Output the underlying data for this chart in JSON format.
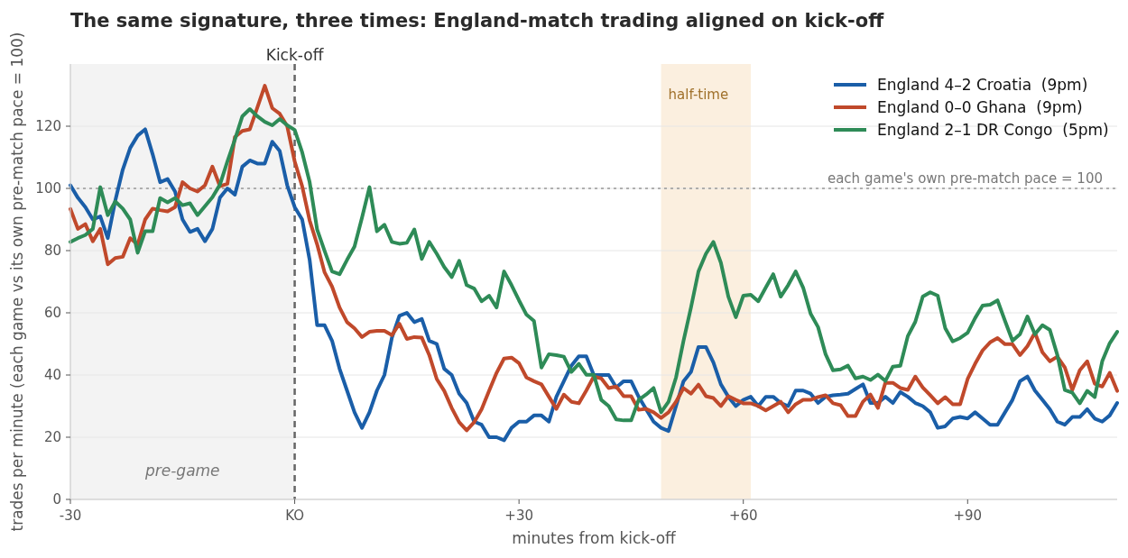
{
  "chart_data": {
    "type": "line",
    "title": "The same signature, three times: England-match trading aligned on kick-off",
    "xlabel": "minutes from kick-off",
    "ylabel": "trades per minute (each game vs its own pre-match pace = 100)",
    "x": [
      -30,
      -29,
      -28,
      -27,
      -26,
      -25,
      -24,
      -23,
      -22,
      -21,
      -20,
      -19,
      -18,
      -17,
      -16,
      -15,
      -14,
      -13,
      -12,
      -11,
      -10,
      -9,
      -8,
      -7,
      -6,
      -5,
      -4,
      -3,
      -2,
      -1,
      0,
      1,
      2,
      3,
      4,
      5,
      6,
      7,
      8,
      9,
      10,
      11,
      12,
      13,
      14,
      15,
      16,
      17,
      18,
      19,
      20,
      21,
      22,
      23,
      24,
      25,
      26,
      27,
      28,
      29,
      30,
      31,
      32,
      33,
      34,
      35,
      36,
      37,
      38,
      39,
      40,
      41,
      42,
      43,
      44,
      45,
      46,
      47,
      48,
      49,
      50,
      51,
      52,
      53,
      54,
      55,
      56,
      57,
      58,
      59,
      60,
      61,
      62,
      63,
      64,
      65,
      66,
      67,
      68,
      69,
      70,
      71,
      72,
      73,
      74,
      75,
      76,
      77,
      78,
      79,
      80,
      81,
      82,
      83,
      84,
      85,
      86,
      87,
      88,
      89,
      90,
      91,
      92,
      93,
      94,
      95,
      96,
      97,
      98,
      99,
      100,
      101,
      102,
      103,
      104,
      105,
      106,
      107,
      108,
      109,
      110
    ],
    "series": [
      {
        "name": "England 4–2 Croatia  (9pm)",
        "color": "#1a5ea8",
        "values": [
          101,
          97,
          94,
          90,
          91,
          84,
          96,
          106,
          113,
          117,
          119,
          111,
          102,
          103,
          99,
          90,
          86,
          87,
          83,
          87,
          97,
          100,
          98,
          107,
          109,
          108,
          108,
          115,
          112,
          101,
          94,
          90,
          77,
          56,
          56,
          51,
          42,
          35,
          28,
          23,
          28,
          35,
          40,
          52,
          59,
          60,
          57,
          58,
          51,
          50,
          42,
          40,
          34,
          31,
          25,
          24,
          20,
          20,
          19,
          23,
          25,
          25,
          27,
          27,
          25,
          33,
          38,
          43,
          46,
          46,
          40,
          40,
          40,
          36,
          38,
          38,
          33,
          29,
          25,
          23,
          22,
          30,
          38,
          41,
          49,
          49,
          44,
          37,
          33,
          30,
          32,
          33,
          30,
          33,
          33,
          31,
          30,
          35,
          35,
          34,
          31,
          33,
          33.5,
          33.7,
          34,
          35.5,
          37,
          31,
          31,
          33,
          31,
          34.5,
          33,
          31,
          30,
          28,
          23,
          23.5,
          26,
          26.5,
          26,
          28,
          26,
          24,
          24,
          28,
          32,
          38,
          39.5,
          35,
          32,
          29,
          25,
          24,
          26.5,
          26.5,
          29,
          26,
          25,
          27,
          31
        ]
      },
      {
        "name": "England 0–0 Ghana  (9pm)",
        "color": "#c0492b",
        "values": [
          93.4,
          87,
          88.5,
          83,
          87,
          75.6,
          77.6,
          78,
          84,
          82,
          90,
          93.5,
          93,
          92.6,
          94,
          102,
          100,
          99,
          101,
          107,
          100.7,
          101.5,
          116.5,
          118.5,
          119,
          126,
          133,
          125.8,
          124,
          120,
          108.7,
          100.7,
          89.7,
          82,
          73,
          68.4,
          61.7,
          57,
          55,
          52.2,
          53.9,
          54.2,
          54.2,
          52.8,
          56.5,
          51.6,
          52.2,
          52,
          46.4,
          38.7,
          34.9,
          29.4,
          24.8,
          22.2,
          24.8,
          29,
          34.9,
          40.7,
          45.3,
          45.6,
          43.8,
          39.2,
          38,
          37,
          33,
          29.1,
          33.7,
          31.4,
          30.9,
          35,
          39.5,
          38.9,
          35.8,
          36.3,
          33.2,
          33.2,
          28.8,
          29.1,
          28,
          26.2,
          28,
          31.4,
          35.8,
          34,
          36.9,
          33.2,
          32.6,
          30,
          33.2,
          32,
          30.9,
          30.9,
          30,
          28.6,
          30,
          31.4,
          28,
          30.6,
          32,
          32,
          32.9,
          33.5,
          30.9,
          30.3,
          26.8,
          26.8,
          31.4,
          33.7,
          29.4,
          37.5,
          37.5,
          35.8,
          35.2,
          39.5,
          36,
          33.5,
          30.9,
          32.9,
          30.6,
          30.6,
          38.7,
          43.6,
          47.9,
          50.5,
          51.9,
          49.9,
          49.9,
          46.4,
          49.3,
          53.6,
          47.3,
          44.4,
          45.9,
          42.4,
          35.2,
          41.5,
          44.4,
          37.2,
          36.3,
          40.7,
          34.9
        ]
      },
      {
        "name": "England 2–1 DR Congo  (5pm)",
        "color": "#2e8b57",
        "values": [
          82.8,
          84,
          85,
          87,
          100.4,
          91.4,
          95.8,
          93.5,
          90,
          79.3,
          86.2,
          86.2,
          96.9,
          95.5,
          96.9,
          94.6,
          95.2,
          91.4,
          94.3,
          97.2,
          101.2,
          108.7,
          115.7,
          123.2,
          125.5,
          123.2,
          121.4,
          120.3,
          122.3,
          120.3,
          118.8,
          111.6,
          102,
          86.8,
          79.9,
          73.3,
          72.4,
          77,
          81.3,
          90.6,
          100.4,
          86.2,
          88.3,
          82.8,
          82.2,
          82.5,
          86.8,
          77.3,
          82.8,
          79,
          74.7,
          71.5,
          76.7,
          68.9,
          67.8,
          63.7,
          65.5,
          61.7,
          73.3,
          68.9,
          64,
          59.4,
          57.4,
          42.4,
          46.7,
          46.4,
          45.9,
          41,
          43.6,
          40.1,
          40.1,
          32,
          30,
          25.7,
          25.4,
          25.4,
          32,
          33.7,
          35.8,
          28,
          31.4,
          39.2,
          51,
          61.7,
          73.3,
          79,
          82.8,
          76.1,
          65.2,
          58.6,
          65.5,
          65.8,
          63.7,
          68.1,
          72.4,
          65.2,
          68.9,
          73.3,
          68.1,
          59.7,
          55.4,
          46.7,
          41.5,
          41.8,
          43,
          38.9,
          39.5,
          38.4,
          40.1,
          38.1,
          42.7,
          43,
          52.5,
          57.1,
          65.2,
          66.6,
          65.5,
          55.1,
          50.8,
          51.9,
          53.6,
          58.3,
          62.3,
          62.6,
          64,
          57.4,
          51,
          53.1,
          58.8,
          53.1,
          56,
          54.5,
          46.4,
          35.2,
          34.3,
          30.9,
          34.9,
          32.9,
          44.4,
          50.2,
          53.9
        ]
      }
    ],
    "xlim": [
      -30,
      110
    ],
    "xticks": [
      -30,
      {
        "value": 0,
        "label": "KO"
      },
      {
        "value": 30,
        "label": "+30"
      },
      {
        "value": 60,
        "label": "+60"
      },
      {
        "value": 90,
        "label": "+90"
      }
    ],
    "ylim": [
      0,
      140
    ],
    "yticks": [
      0,
      20,
      40,
      60,
      80,
      100,
      120
    ],
    "grid": "y",
    "legend": "top right",
    "line_style": "solid",
    "marker": "none",
    "bands": [
      {
        "axis": "x",
        "from": -30,
        "to": 0,
        "label": "pre-game",
        "color": "#f3f3f3"
      },
      {
        "axis": "x",
        "from": 49,
        "to": 61,
        "label": "half-time",
        "color": "#fbefdf"
      }
    ],
    "ref_lines": [
      {
        "axis": "x",
        "value": 0,
        "label": "Kick-off",
        "color": "#666666",
        "line_style": "dashed"
      },
      {
        "axis": "y",
        "value": 100,
        "label": "each game's own pre-match pace = 100",
        "color": "#999999",
        "line_style": "dotted"
      }
    ]
  }
}
